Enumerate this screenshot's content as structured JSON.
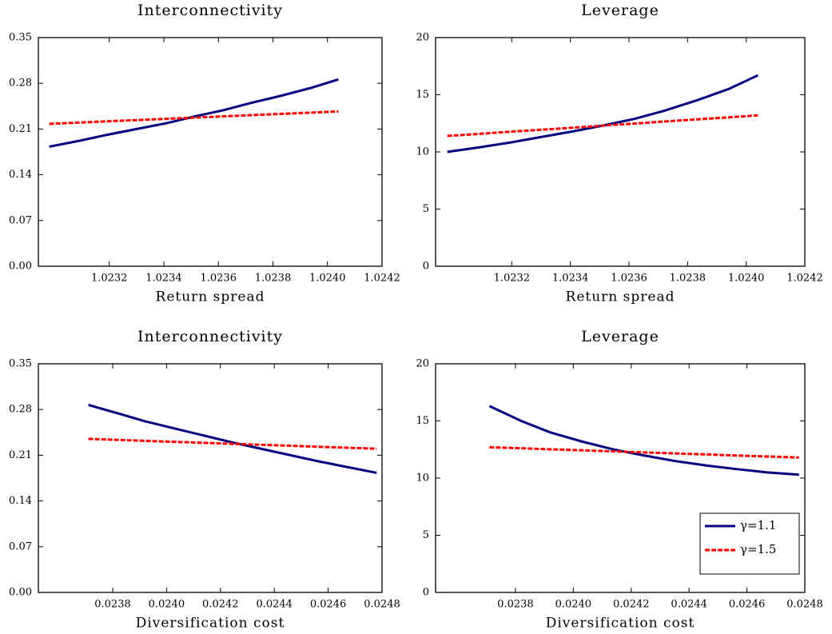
{
  "chart_data": [
    {
      "type": "line",
      "title": "Interconnectivity",
      "xlabel": "Return spread",
      "x": [
        1.02298,
        1.02309,
        1.02319,
        1.0233,
        1.02341,
        1.02351,
        1.02362,
        1.02372,
        1.02383,
        1.02394,
        1.02404
      ],
      "series": [
        {
          "color": "#000080",
          "style": "solid",
          "values": [
            0.183,
            0.192,
            0.201,
            0.21,
            0.219,
            0.229,
            0.239,
            0.25,
            0.261,
            0.273,
            0.286
          ]
        },
        {
          "color": "#ff0000",
          "style": "dashed",
          "values": [
            0.218,
            0.2199,
            0.2218,
            0.2237,
            0.2256,
            0.2275,
            0.2294,
            0.2313,
            0.2332,
            0.2351,
            0.237
          ]
        }
      ],
      "xlim": [
        1.02294,
        1.0242
      ],
      "xticks": [
        1.0232,
        1.0234,
        1.0236,
        1.0238,
        {
          "value": 1.024,
          "label": "1.0240"
        },
        1.0242
      ],
      "ylim": [
        0,
        0.35
      ],
      "yticks": [
        {
          "value": 0,
          "label": "0.00"
        },
        0.07,
        0.14,
        0.21,
        0.28,
        0.35
      ]
    },
    {
      "type": "line",
      "title": "Leverage",
      "xlabel": "Return spread",
      "x": [
        1.02298,
        1.02309,
        1.02319,
        1.0233,
        1.02341,
        1.02351,
        1.02362,
        1.02372,
        1.02383,
        1.02394,
        1.02404
      ],
      "series": [
        {
          "color": "#000080",
          "style": "solid",
          "values": [
            10.0,
            10.4,
            10.8,
            11.3,
            11.8,
            12.3,
            12.9,
            13.6,
            14.5,
            15.5,
            16.7
          ]
        },
        {
          "color": "#ff0000",
          "style": "dashed",
          "values": [
            11.4,
            11.58,
            11.76,
            11.94,
            12.12,
            12.3,
            12.48,
            12.66,
            12.84,
            13.02,
            13.2
          ]
        }
      ],
      "xlim": [
        1.02294,
        1.0242
      ],
      "xticks": [
        1.0232,
        1.0234,
        1.0236,
        1.0238,
        {
          "value": 1.024,
          "label": "1.0240"
        },
        1.0242
      ],
      "ylim": [
        0,
        20
      ],
      "yticks": [
        0,
        5,
        10,
        15,
        20
      ]
    },
    {
      "type": "line",
      "title": "Interconnectivity",
      "xlabel": "Diversification cost",
      "x": [
        0.02371,
        0.02382,
        0.02392,
        0.02403,
        0.02414,
        0.02424,
        0.02435,
        0.02446,
        0.02456,
        0.02467,
        0.02478
      ],
      "series": [
        {
          "color": "#000080",
          "style": "solid",
          "values": [
            0.287,
            0.274,
            0.262,
            0.251,
            0.24,
            0.23,
            0.22,
            0.21,
            0.201,
            0.192,
            0.183
          ]
        },
        {
          "color": "#ff0000",
          "style": "dashed",
          "values": [
            0.235,
            0.2335,
            0.232,
            0.2305,
            0.229,
            0.2275,
            0.226,
            0.2245,
            0.223,
            0.2215,
            0.22
          ]
        }
      ],
      "xlim": [
        0.023524,
        0.0248
      ],
      "xticks": [
        0.0238,
        {
          "value": 0.024,
          "label": "0.0240"
        },
        0.0242,
        0.0244,
        0.0246,
        0.0248
      ],
      "ylim": [
        0,
        0.35
      ],
      "yticks": [
        {
          "value": 0,
          "label": "0.00"
        },
        0.07,
        0.14,
        0.21,
        0.28,
        0.35
      ]
    },
    {
      "type": "line",
      "title": "Leverage",
      "xlabel": "Diversification cost",
      "x": [
        0.02371,
        0.02382,
        0.02392,
        0.02403,
        0.02414,
        0.02424,
        0.02435,
        0.02446,
        0.02456,
        0.02467,
        0.02478
      ],
      "series": [
        {
          "name": "γ=1.1",
          "color": "#000080",
          "style": "solid",
          "values": [
            16.3,
            15.0,
            14.0,
            13.2,
            12.5,
            12.0,
            11.5,
            11.1,
            10.8,
            10.5,
            10.3
          ]
        },
        {
          "name": "γ=1.5",
          "color": "#ff0000",
          "style": "dashed",
          "values": [
            12.7,
            12.61,
            12.52,
            12.43,
            12.34,
            12.25,
            12.16,
            12.07,
            11.98,
            11.89,
            11.8
          ]
        }
      ],
      "xlim": [
        0.023524,
        0.0248
      ],
      "xticks": [
        0.0238,
        {
          "value": 0.024,
          "label": "0.0240"
        },
        0.0242,
        0.0244,
        0.0246,
        0.0248
      ],
      "ylim": [
        0,
        20
      ],
      "yticks": [
        0,
        5,
        10,
        15,
        20
      ],
      "legend": "lower right"
    }
  ]
}
